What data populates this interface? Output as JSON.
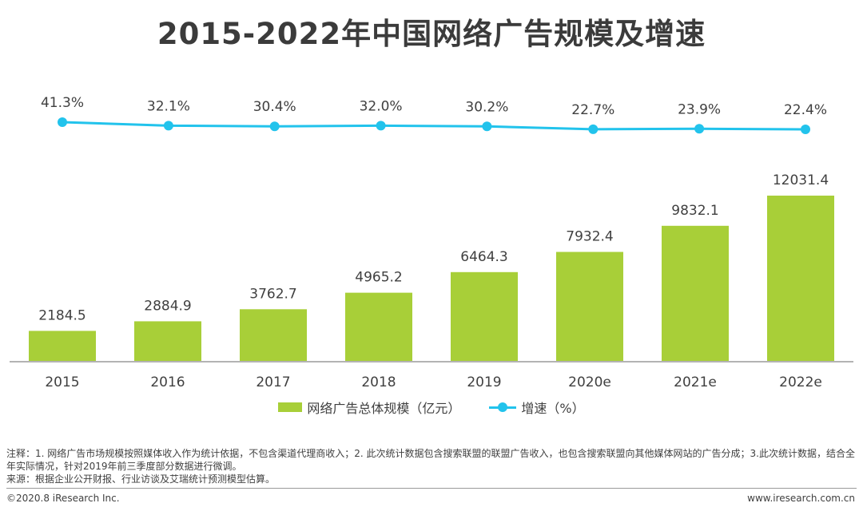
{
  "title": "2015-2022年中国网络广告规模及增速",
  "chart_data": {
    "type": "bar",
    "categories": [
      "2015",
      "2016",
      "2017",
      "2018",
      "2019",
      "2020e",
      "2021e",
      "2022e"
    ],
    "series": [
      {
        "name": "网络广告总体规模（亿元）",
        "type": "bar",
        "values": [
          2184.5,
          2884.9,
          3762.7,
          4965.2,
          6464.3,
          7932.4,
          9832.1,
          12031.4
        ],
        "labels": [
          "2184.5",
          "2884.9",
          "3762.7",
          "4965.2",
          "6464.3",
          "7932.4",
          "9832.1",
          "12031.4"
        ],
        "color": "#a8cf38"
      },
      {
        "name": "增速（%）",
        "type": "line",
        "values": [
          41.3,
          32.1,
          30.4,
          32.0,
          30.2,
          22.7,
          23.9,
          22.4
        ],
        "labels": [
          "41.3%",
          "32.1%",
          "30.4%",
          "32.0%",
          "30.2%",
          "22.7%",
          "23.9%",
          "22.4%"
        ],
        "color": "#22c3ec"
      }
    ],
    "ylim": [
      0,
      12031.4
    ],
    "growth_ylim": [
      22.4,
      41.3
    ],
    "grid": false,
    "legend_position": "bottom"
  },
  "legend": {
    "bar_label": "网络广告总体规模（亿元）",
    "line_label": "增速（%）"
  },
  "notes": {
    "note": "注释：1. 网络广告市场规模按照媒体收入作为统计依据，不包含渠道代理商收入；2. 此次统计数据包含搜索联盟的联盟广告收入，也包含搜索联盟向其他媒体网站的广告分成；3.此次统计数据，结合全年实际情况，针对2019年前三季度部分数据进行微调。",
    "source": "来源：根据企业公开财报、行业访谈及艾瑞统计预测模型估算。"
  },
  "footer": {
    "copyright": "©2020.8 iResearch Inc.",
    "website": "www.iresearch.com.cn"
  }
}
